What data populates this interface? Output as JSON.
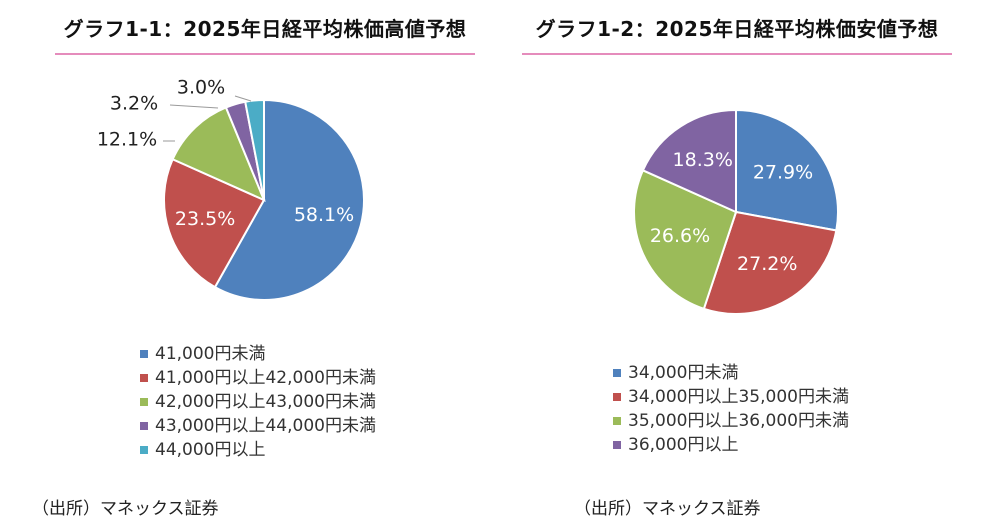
{
  "chart_data": [
    {
      "type": "pie",
      "title": "グラフ1-1：2025年日経平均株価高値予想",
      "categories": [
        "41,000円未満",
        "41,000円以上42,000円未満",
        "42,000円以上43,000円未満",
        "43,000円以上44,000円未満",
        "44,000円以上"
      ],
      "values": [
        58.1,
        23.5,
        12.1,
        3.2,
        3.0
      ],
      "labels": [
        "58.1%",
        "23.5%",
        "12.1%",
        "3.2%",
        "3.0%"
      ],
      "colors": [
        "#4f81bd",
        "#c0504d",
        "#9bbb59",
        "#8064a2",
        "#4bacc6"
      ],
      "legend_position": "bottom",
      "source": "（出所）マネックス証券"
    },
    {
      "type": "pie",
      "title": "グラフ1-2：2025年日経平均株価安値予想",
      "categories": [
        "34,000円未満",
        "34,000円以上35,000円未満",
        "35,000円以上36,000円未満",
        "36,000円以上"
      ],
      "values": [
        27.9,
        27.2,
        26.6,
        18.3
      ],
      "labels": [
        "27.9%",
        "27.2%",
        "26.6%",
        "18.3%"
      ],
      "colors": [
        "#4f81bd",
        "#c0504d",
        "#9bbb59",
        "#8064a2"
      ],
      "legend_position": "bottom",
      "source": "（出所）マネックス証券"
    }
  ],
  "theme": {
    "title_rule_color": "#e58cbc"
  }
}
